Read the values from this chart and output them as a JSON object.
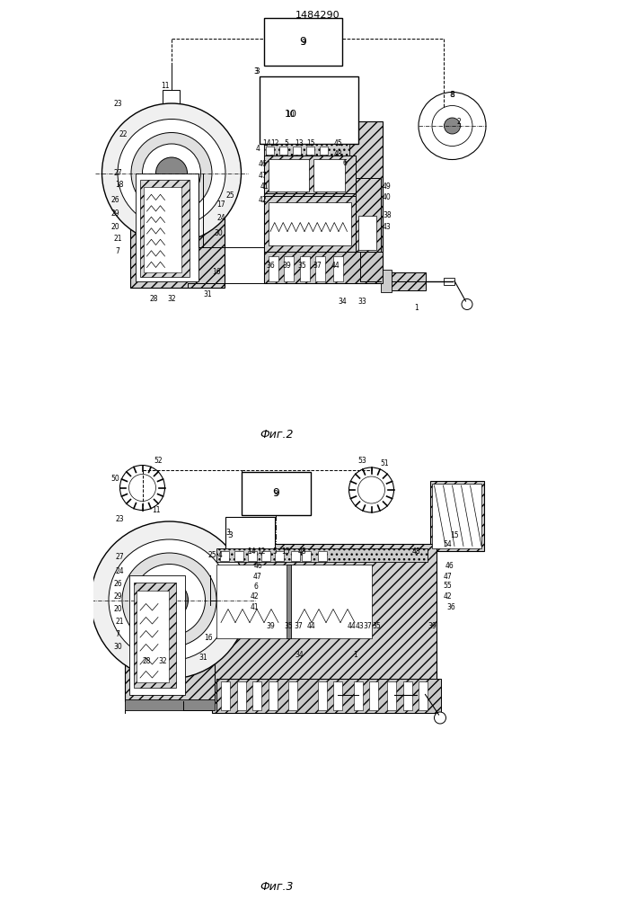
{
  "title": "1484290",
  "fig2_label": "Фиг.2",
  "fig3_label": "Фиг.3",
  "bg_color": "#ffffff"
}
